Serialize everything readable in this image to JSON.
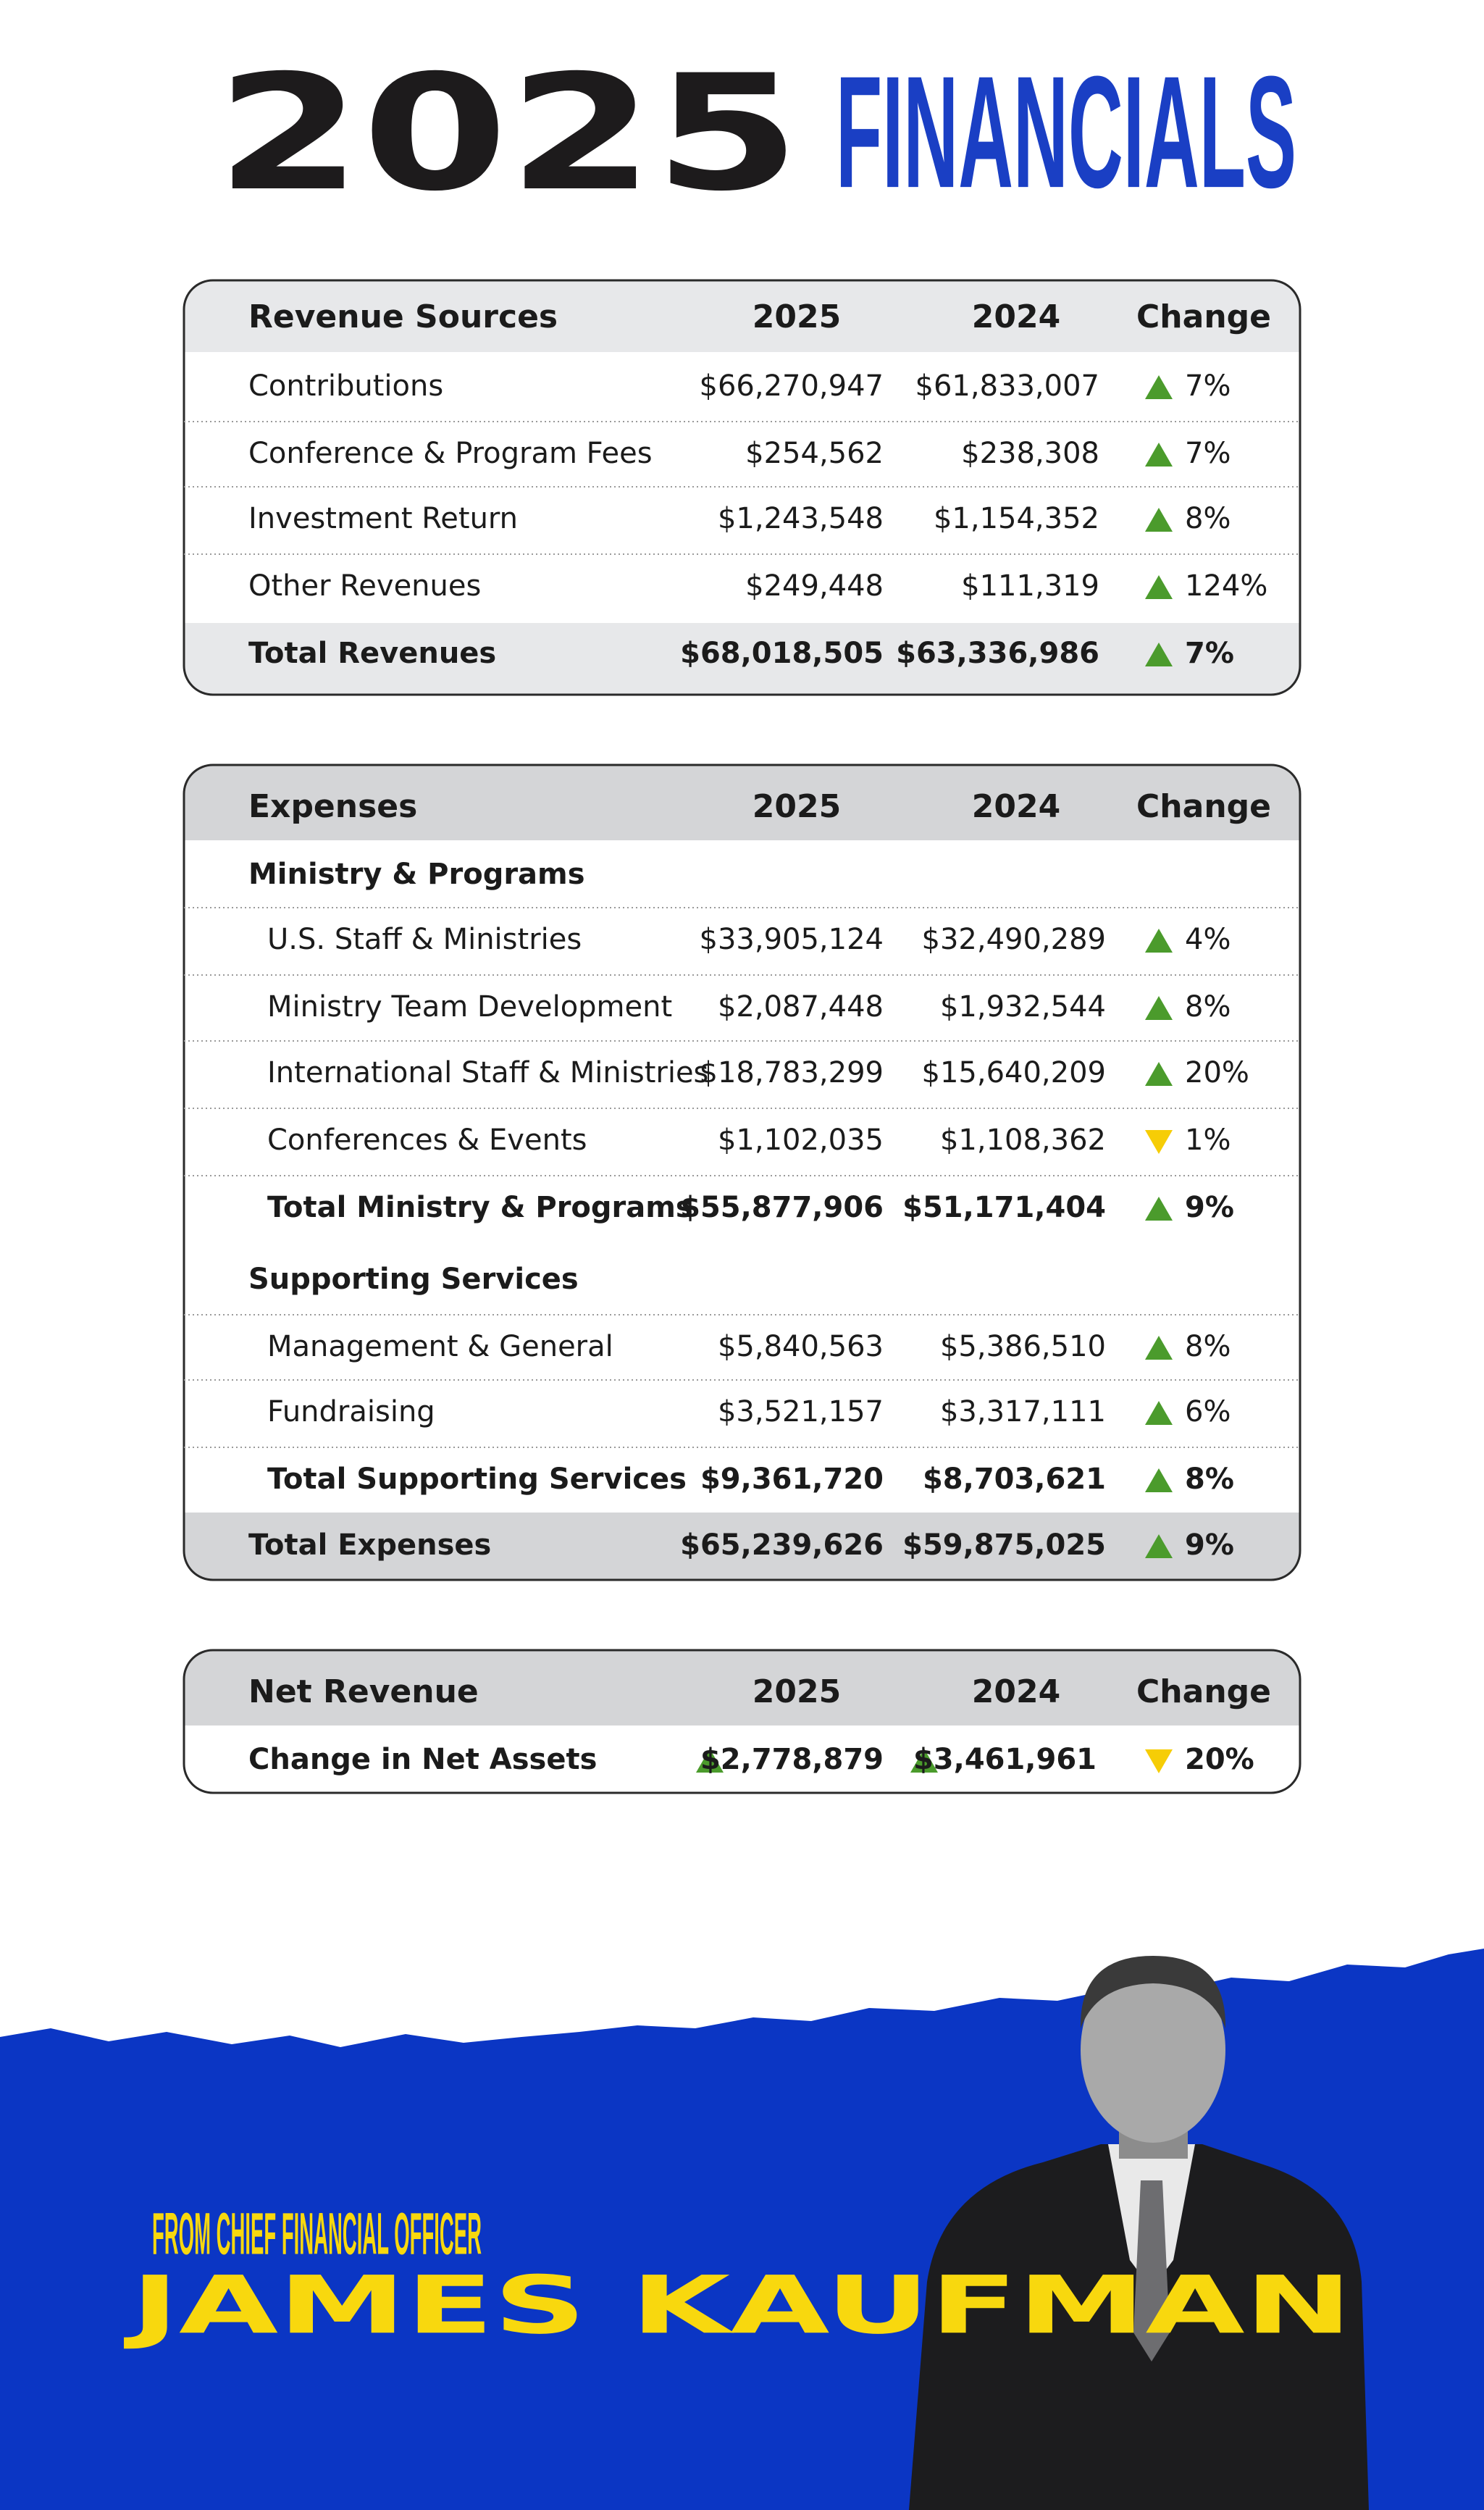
{
  "title": {
    "year": "2025",
    "word": "FINANCIALS"
  },
  "revenue": {
    "header": [
      "Revenue Sources",
      "2025",
      "2024",
      "Change"
    ],
    "rows": [
      {
        "label": "Contributions",
        "y2025": "$66,270,947",
        "y2024": "$61,833,007",
        "change": "7%",
        "trend": "up"
      },
      {
        "label": "Conference & Program Fees",
        "y2025": "$254,562",
        "y2024": "$238,308",
        "change": "7%",
        "trend": "up"
      },
      {
        "label": "Investment Return",
        "y2025": "$1,243,548",
        "y2024": "$1,154,352",
        "change": "8%",
        "trend": "up"
      },
      {
        "label": "Other Revenues",
        "y2025": "$249,448",
        "y2024": "$111,319",
        "change": "124%",
        "trend": "up"
      }
    ],
    "total": {
      "label": "Total Revenues",
      "y2025": "$68,018,505",
      "y2024": "$63,336,986",
      "change": "7%",
      "trend": "up"
    }
  },
  "expenses": {
    "header": [
      "Expenses",
      "2025",
      "2024",
      "Change"
    ],
    "sections": [
      {
        "title": "Ministry & Programs",
        "rows": [
          {
            "label": "U.S. Staff & Ministries",
            "y2025": "$33,905,124",
            "y2024": "$32,490,289",
            "change": "4%",
            "trend": "up"
          },
          {
            "label": "Ministry Team Development",
            "y2025": "$2,087,448",
            "y2024": "$1,932,544",
            "change": "8%",
            "trend": "up"
          },
          {
            "label": "International Staff & Ministries",
            "y2025": "$18,783,299",
            "y2024": "$15,640,209",
            "change": "20%",
            "trend": "up"
          },
          {
            "label": "Conferences & Events",
            "y2025": "$1,102,035",
            "y2024": "$1,108,362",
            "change": "1%",
            "trend": "down"
          }
        ],
        "total": {
          "label": "Total Ministry & Programs",
          "y2025": "$55,877,906",
          "y2024": "$51,171,404",
          "change": "9%",
          "trend": "up"
        }
      },
      {
        "title": "Supporting Services",
        "rows": [
          {
            "label": "Management & General",
            "y2025": "$5,840,563",
            "y2024": "$5,386,510",
            "change": "8%",
            "trend": "up"
          },
          {
            "label": "Fundraising",
            "y2025": "$3,521,157",
            "y2024": "$3,317,111",
            "change": "6%",
            "trend": "up"
          }
        ],
        "total": {
          "label": "Total Supporting Services",
          "y2025": "$9,361,720",
          "y2024": "$8,703,621",
          "change": "8%",
          "trend": "up"
        }
      }
    ],
    "total": {
      "label": "Total Expenses",
      "y2025": "$65,239,626",
      "y2024": "$59,875,025",
      "change": "9%",
      "trend": "up"
    }
  },
  "net": {
    "header": [
      "Net Revenue",
      "2025",
      "2024",
      "Change"
    ],
    "row": {
      "label": "Change in Net Assets",
      "y2025": "$2,778,879",
      "trend2025": "up",
      "y2024": "$3,461,961",
      "trend2024": "up",
      "change": "20%",
      "trend": "down"
    }
  },
  "footer": {
    "kicker": "FROM CHIEF FINANCIAL OFFICER",
    "name": "JAMES KAUFMAN"
  }
}
